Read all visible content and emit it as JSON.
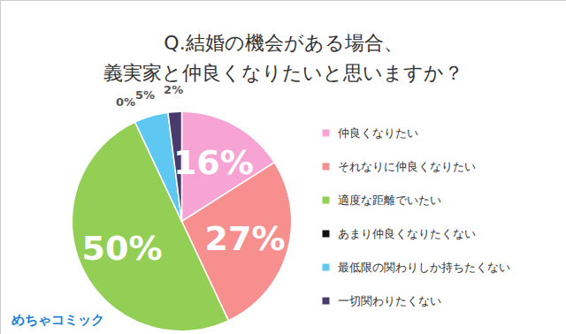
{
  "chart_data": {
    "type": "pie",
    "title": "Q.結婚の機会がある場合、\n義実家と仲良くなりたいと思いますか？",
    "categories": [
      "仲良くなりたい",
      "それなりに仲良くなりたい",
      "適度な距離でいたい",
      "あまり仲良くなりたくない",
      "最低限の関わりしか持ちたくない",
      "一切関わりたくない"
    ],
    "values": [
      16,
      27,
      50,
      0,
      5,
      2
    ],
    "value_labels": [
      "16%",
      "27%",
      "50%",
      "0%",
      "5%",
      "2%"
    ],
    "colors": [
      "#f7a3d3",
      "#f78f8f",
      "#93cf55",
      "#111111",
      "#5ec8f2",
      "#4a3b6e"
    ],
    "data_labels": true,
    "legend": "right",
    "tick_labels": false,
    "source": "めちゃコミック"
  }
}
